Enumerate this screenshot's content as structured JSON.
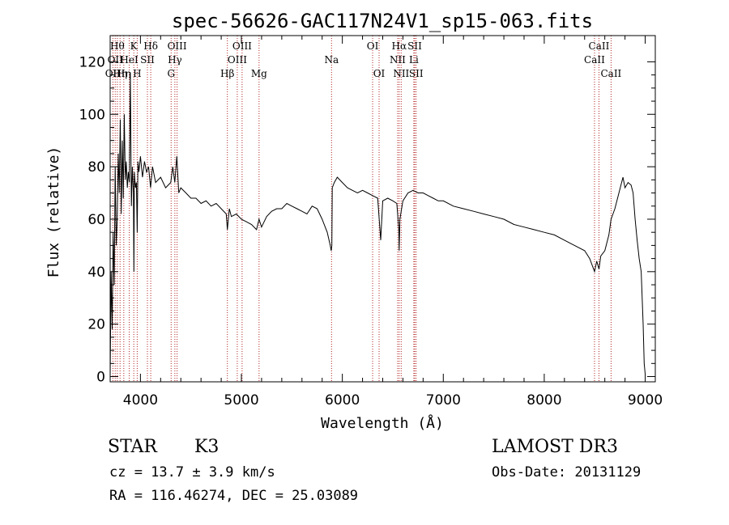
{
  "chart_data": {
    "type": "line",
    "title": "spec-56626-GAC117N24V1_sp15-063.fits",
    "xlabel": "Wavelength (Å)",
    "ylabel": "Flux (relative)",
    "xlim": [
      3700,
      9100
    ],
    "ylim": [
      -2,
      130
    ],
    "xticks": [
      4000,
      5000,
      6000,
      7000,
      8000,
      9000
    ],
    "yticks": [
      0,
      20,
      40,
      60,
      80,
      100,
      120
    ],
    "grid": false,
    "series": [
      {
        "name": "flux",
        "x": [
          3700,
          3710,
          3720,
          3730,
          3740,
          3750,
          3760,
          3770,
          3780,
          3790,
          3800,
          3810,
          3820,
          3830,
          3840,
          3850,
          3860,
          3870,
          3880,
          3890,
          3900,
          3910,
          3920,
          3930,
          3935,
          3940,
          3950,
          3960,
          3968,
          3975,
          3985,
          4000,
          4020,
          4040,
          4060,
          4080,
          4100,
          4120,
          4150,
          4200,
          4250,
          4300,
          4320,
          4340,
          4360,
          4380,
          4400,
          4450,
          4500,
          4550,
          4600,
          4650,
          4700,
          4750,
          4800,
          4850,
          4861,
          4880,
          4900,
          4950,
          5000,
          5050,
          5100,
          5150,
          5175,
          5200,
          5250,
          5300,
          5350,
          5400,
          5450,
          5500,
          5550,
          5600,
          5650,
          5700,
          5750,
          5800,
          5850,
          5880,
          5890,
          5896,
          5900,
          5920,
          5950,
          6000,
          6050,
          6100,
          6150,
          6200,
          6250,
          6300,
          6350,
          6380,
          6400,
          6450,
          6500,
          6540,
          6560,
          6563,
          6570,
          6600,
          6650,
          6700,
          6750,
          6800,
          6850,
          6900,
          6950,
          7000,
          7100,
          7200,
          7300,
          7400,
          7500,
          7600,
          7700,
          7800,
          7900,
          8000,
          8100,
          8200,
          8300,
          8400,
          8450,
          8498,
          8520,
          8542,
          8560,
          8600,
          8640,
          8662,
          8700,
          8740,
          8780,
          8800,
          8830,
          8860,
          8880,
          8900,
          8920,
          8940,
          8960,
          8980,
          8990,
          9000
        ],
        "y": [
          0,
          40,
          18,
          55,
          35,
          80,
          50,
          60,
          85,
          70,
          98,
          62,
          90,
          68,
          100,
          75,
          82,
          72,
          78,
          74,
          116,
          65,
          80,
          70,
          40,
          78,
          72,
          74,
          55,
          82,
          78,
          84,
          76,
          82,
          78,
          80,
          72,
          80,
          74,
          76,
          72,
          74,
          80,
          74,
          84,
          70,
          72,
          70,
          68,
          68,
          66,
          67,
          65,
          66,
          64,
          62,
          56,
          64,
          61,
          62,
          60,
          59,
          58,
          56,
          60,
          57,
          61,
          63,
          64,
          64,
          66,
          65,
          64,
          63,
          62,
          65,
          64,
          60,
          55,
          50,
          48,
          50,
          72,
          74,
          76,
          74,
          72,
          71,
          70,
          71,
          70,
          69,
          68,
          52,
          67,
          68,
          67,
          66,
          56,
          48,
          60,
          67,
          70,
          71,
          70,
          70,
          69,
          68,
          67,
          67,
          65,
          64,
          63,
          62,
          61,
          60,
          58,
          57,
          56,
          55,
          54,
          52,
          50,
          48,
          45,
          40,
          44,
          41,
          46,
          48,
          54,
          60,
          64,
          70,
          76,
          72,
          74,
          73,
          70,
          60,
          52,
          45,
          40,
          20,
          5,
          1
        ]
      }
    ],
    "lines": [
      {
        "wavelength": 3727,
        "label": "OII",
        "row": 2
      },
      {
        "wavelength": 3750,
        "label": "OII",
        "row": 1
      },
      {
        "wavelength": 3771,
        "label": "Hθ",
        "row": 0
      },
      {
        "wavelength": 3798,
        "label": "Hη",
        "row": 2
      },
      {
        "wavelength": 3835,
        "label": "Hη",
        "row": 2
      },
      {
        "wavelength": 3889,
        "label": "HeI",
        "row": 1
      },
      {
        "wavelength": 3934,
        "label": "K",
        "row": 0
      },
      {
        "wavelength": 3968,
        "label": "H",
        "row": 2
      },
      {
        "wavelength": 4069,
        "label": "SII",
        "row": 1
      },
      {
        "wavelength": 4102,
        "label": "Hδ",
        "row": 0
      },
      {
        "wavelength": 4304,
        "label": "G",
        "row": 2
      },
      {
        "wavelength": 4341,
        "label": "Hγ",
        "row": 1
      },
      {
        "wavelength": 4363,
        "label": "OIII",
        "row": 0
      },
      {
        "wavelength": 4861,
        "label": "Hβ",
        "row": 2
      },
      {
        "wavelength": 4959,
        "label": "OIII",
        "row": 1
      },
      {
        "wavelength": 5007,
        "label": "OIII",
        "row": 0
      },
      {
        "wavelength": 5175,
        "label": "Mg",
        "row": 2
      },
      {
        "wavelength": 5893,
        "label": "Na",
        "row": 1
      },
      {
        "wavelength": 6300,
        "label": "OI",
        "row": 0
      },
      {
        "wavelength": 6364,
        "label": "OI",
        "row": 2
      },
      {
        "wavelength": 6548,
        "label": "NII",
        "row": 1
      },
      {
        "wavelength": 6563,
        "label": "Hα",
        "row": 0
      },
      {
        "wavelength": 6583,
        "label": "NII",
        "row": 2
      },
      {
        "wavelength": 6708,
        "label": "Li",
        "row": 1
      },
      {
        "wavelength": 6717,
        "label": "SII",
        "row": 0
      },
      {
        "wavelength": 6731,
        "label": "SII",
        "row": 2
      },
      {
        "wavelength": 8498,
        "label": "CaII",
        "row": 1
      },
      {
        "wavelength": 8542,
        "label": "CaII",
        "row": 0
      },
      {
        "wavelength": 8662,
        "label": "CaII",
        "row": 2
      }
    ]
  },
  "info": {
    "object_class": "STAR",
    "subclass": "K3",
    "survey": "LAMOST DR3",
    "cz": "cz = 13.7 ± 3.9 km/s",
    "obs_date": "Obs-Date: 20131129",
    "coords": "RA = 116.46274, DEC =  25.03089"
  }
}
